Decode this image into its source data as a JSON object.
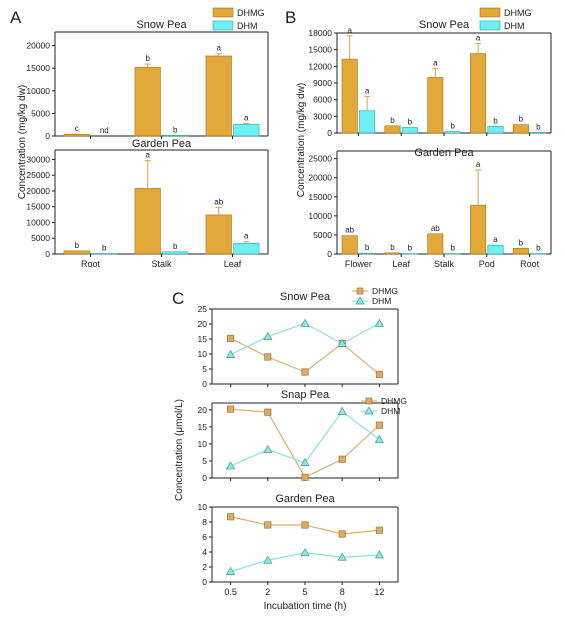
{
  "panel_letters": [
    "A",
    "B",
    "C"
  ],
  "colors": {
    "dhmg_fill": "#E3A83A",
    "dhmg_stroke": "#A87418",
    "dhm_fill": "#6FEFF0",
    "dhm_stroke": "#2AA9AE",
    "line_dhmg": "#D9B070",
    "line_dhm": "#8EE0E0",
    "marker_dhmg_fill": "#D9AB63",
    "marker_dhmg_stroke": "#A07534",
    "marker_dhm_fill": "#93E6DE",
    "marker_dhm_stroke": "#3B9E97",
    "error_bar": "#D4A24D",
    "axis": "#222222"
  },
  "chart_data": [
    {
      "id": "A-top",
      "panel": "A",
      "type": "bar",
      "title": "Snow Pea",
      "categories": [
        "Root",
        "Stalk",
        "Leaf"
      ],
      "show_xticklabels": false,
      "ylabel_shared": "Concentration (mg/kg dw)",
      "ylim": [
        0,
        23000
      ],
      "yticks": [
        0,
        5000,
        10000,
        15000,
        20000
      ],
      "legend": [
        "DHMG",
        "DHM"
      ],
      "series": [
        {
          "name": "DHMG",
          "values": [
            400,
            15200,
            17700
          ],
          "errors": [
            0,
            700,
            500
          ],
          "letters": [
            "c",
            "b",
            "a"
          ]
        },
        {
          "name": "DHM",
          "values": [
            0,
            150,
            2600
          ],
          "errors": [
            0,
            0,
            200
          ],
          "letters": [
            "nd",
            "b",
            "a"
          ]
        }
      ]
    },
    {
      "id": "A-bottom",
      "panel": "A",
      "type": "bar",
      "title": "Garden Pea",
      "categories": [
        "Root",
        "Stalk",
        "Leaf"
      ],
      "show_xticklabels": true,
      "ylim": [
        0,
        33000
      ],
      "yticks": [
        0,
        5000,
        10000,
        15000,
        20000,
        25000,
        30000
      ],
      "series": [
        {
          "name": "DHMG",
          "values": [
            1000,
            20800,
            12400
          ],
          "errors": [
            0,
            8800,
            2400
          ],
          "letters": [
            "b",
            "a",
            "ab"
          ]
        },
        {
          "name": "DHM",
          "values": [
            150,
            700,
            3400
          ],
          "errors": [
            0,
            0,
            500
          ],
          "letters": [
            "b",
            "b",
            "a"
          ]
        }
      ]
    },
    {
      "id": "B-top",
      "panel": "B",
      "type": "bar",
      "title": "Snow Pea",
      "categories": [
        "Flower",
        "Leaf",
        "Stalk",
        "Pod",
        "Root"
      ],
      "show_xticklabels": false,
      "ylabel_shared": "Concentration (mg/kg dw)",
      "ylim": [
        0,
        18000
      ],
      "yticks": [
        0,
        3000,
        6000,
        9000,
        12000,
        15000,
        18000
      ],
      "legend": [
        "DHMG",
        "DHM"
      ],
      "series": [
        {
          "name": "DHMG",
          "values": [
            13300,
            1300,
            10000,
            14300,
            1500
          ],
          "errors": [
            4200,
            0,
            1600,
            1800,
            0
          ],
          "letters": [
            "a",
            "b",
            "a",
            "a",
            "b"
          ]
        },
        {
          "name": "DHM",
          "values": [
            4000,
            1000,
            250,
            1200,
            100
          ],
          "errors": [
            2600,
            0,
            0,
            0,
            0
          ],
          "letters": [
            "a",
            "b",
            "b",
            "b",
            "b"
          ]
        }
      ]
    },
    {
      "id": "B-bottom",
      "panel": "B",
      "type": "bar",
      "title": "Garden Pea",
      "categories": [
        "Flower",
        "Leaf",
        "Stalk",
        "Pod",
        "Root"
      ],
      "show_xticklabels": true,
      "ylim": [
        0,
        27000
      ],
      "yticks": [
        0,
        5000,
        10000,
        15000,
        20000,
        25000
      ],
      "series": [
        {
          "name": "DHMG",
          "values": [
            4800,
            300,
            5300,
            12800,
            1500
          ],
          "errors": [
            0,
            0,
            0,
            9200,
            0
          ],
          "letters": [
            "ab",
            "b",
            "ab",
            "a",
            "b"
          ]
        },
        {
          "name": "DHM",
          "values": [
            200,
            100,
            100,
            2300,
            100
          ],
          "errors": [
            0,
            0,
            0,
            0,
            0
          ],
          "letters": [
            "b",
            "b",
            "b",
            "a",
            "b"
          ]
        }
      ]
    },
    {
      "id": "C-snow",
      "panel": "C",
      "type": "line",
      "title": "Snow Pea",
      "x": [
        "0.5",
        "2",
        "5",
        "8",
        "12"
      ],
      "show_xticklabels": false,
      "ylim": [
        0,
        25
      ],
      "yticks": [
        0,
        5,
        10,
        15,
        20,
        25
      ],
      "legend": [
        "DHMG",
        "DHM"
      ],
      "series": [
        {
          "name": "DHMG",
          "values": [
            15.2,
            9.0,
            4.0,
            13.5,
            3.2
          ]
        },
        {
          "name": "DHM",
          "values": [
            9.8,
            15.8,
            20.2,
            13.5,
            20.2
          ]
        }
      ]
    },
    {
      "id": "C-snap",
      "panel": "C",
      "type": "line",
      "title": "Snap Pea",
      "x": [
        "0.5",
        "2",
        "5",
        "8",
        "12"
      ],
      "show_xticklabels": false,
      "ylabel_shared": "Concentration (μmol/L)",
      "ylim": [
        0,
        22
      ],
      "yticks": [
        0,
        5,
        10,
        15,
        20
      ],
      "legend": [
        "DHMG",
        "DHM"
      ],
      "series": [
        {
          "name": "DHMG",
          "values": [
            20.2,
            19.3,
            0.2,
            5.5,
            15.5
          ]
        },
        {
          "name": "DHM",
          "values": [
            3.5,
            8.3,
            4.5,
            19.5,
            11.3
          ]
        }
      ]
    },
    {
      "id": "C-garden",
      "panel": "C",
      "type": "line",
      "title": "Garden Pea",
      "x": [
        "0.5",
        "2",
        "5",
        "8",
        "12"
      ],
      "show_xticklabels": true,
      "xlabel": "Incubation time (h)",
      "ylim": [
        0,
        10
      ],
      "yticks": [
        0,
        2,
        4,
        6,
        8,
        10
      ],
      "series": [
        {
          "name": "DHMG",
          "values": [
            8.7,
            7.6,
            7.6,
            6.4,
            6.9
          ]
        },
        {
          "name": "DHM",
          "values": [
            1.4,
            2.9,
            3.9,
            3.3,
            3.6
          ]
        }
      ]
    }
  ]
}
